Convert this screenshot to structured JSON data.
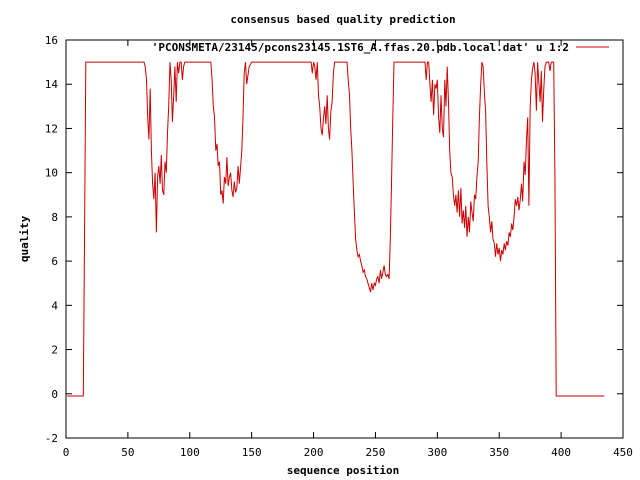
{
  "chart_data": {
    "type": "line",
    "title": "consensus based quality prediction",
    "xlabel": "sequence position",
    "ylabel": "quality",
    "xlim": [
      0,
      450
    ],
    "ylim": [
      -2,
      16
    ],
    "xticks": [
      0,
      50,
      100,
      150,
      200,
      250,
      300,
      350,
      400,
      450
    ],
    "yticks": [
      -2,
      0,
      2,
      4,
      6,
      8,
      10,
      12,
      14,
      16
    ],
    "grid": false,
    "legend_position": "top-right",
    "series": [
      {
        "name": "'PCONSMETA/23145/pcons23145.1ST6_A.ffas.20.pdb.local.dat' u 1:2",
        "color": "#cc0000",
        "x": [
          1,
          14,
          15,
          16,
          17,
          18,
          20,
          25,
          30,
          40,
          50,
          55,
          60,
          63,
          64,
          65,
          66,
          67,
          68,
          69,
          70,
          71,
          72,
          73,
          74,
          75,
          76,
          77,
          78,
          79,
          80,
          81,
          82,
          83,
          84,
          85,
          86,
          87,
          88,
          89,
          90,
          91,
          92,
          93,
          94,
          95,
          96,
          97,
          98,
          99,
          100,
          105,
          110,
          115,
          117,
          118,
          119,
          120,
          121,
          122,
          123,
          124,
          125,
          126,
          127,
          128,
          129,
          130,
          131,
          132,
          133,
          134,
          135,
          136,
          137,
          138,
          139,
          140,
          141,
          142,
          143,
          144,
          145,
          146,
          148,
          150,
          155,
          160,
          170,
          180,
          190,
          198,
          199,
          200,
          201,
          202,
          203,
          204,
          205,
          206,
          207,
          208,
          209,
          210,
          211,
          212,
          213,
          214,
          215,
          216,
          217,
          218,
          219,
          220,
          221,
          222,
          223,
          224,
          225,
          226,
          227,
          228,
          229,
          230,
          231,
          232,
          233,
          234,
          235,
          236,
          237,
          238,
          239,
          240,
          241,
          242,
          243,
          244,
          245,
          246,
          247,
          248,
          249,
          250,
          251,
          252,
          253,
          254,
          255,
          256,
          257,
          258,
          259,
          260,
          261,
          262,
          263,
          264,
          265,
          266,
          267,
          268,
          270,
          275,
          280,
          285,
          290,
          291,
          292,
          293,
          294,
          295,
          296,
          297,
          298,
          299,
          300,
          301,
          302,
          303,
          304,
          305,
          306,
          307,
          308,
          309,
          310,
          311,
          312,
          313,
          314,
          315,
          316,
          317,
          318,
          319,
          320,
          321,
          322,
          323,
          324,
          325,
          326,
          327,
          328,
          329,
          330,
          331,
          332,
          333,
          334,
          335,
          336,
          337,
          338,
          339,
          340,
          341,
          342,
          343,
          344,
          345,
          346,
          347,
          348,
          349,
          350,
          351,
          352,
          353,
          354,
          355,
          356,
          357,
          358,
          359,
          360,
          361,
          362,
          363,
          364,
          365,
          366,
          367,
          368,
          369,
          370,
          371,
          372,
          373,
          374,
          375,
          376,
          377,
          378,
          379,
          380,
          381,
          382,
          383,
          384,
          385,
          386,
          387,
          388,
          389,
          390,
          391,
          392,
          393,
          394,
          395,
          396,
          400,
          410,
          420,
          435
        ],
        "y": [
          -0.1,
          -0.1,
          7.5,
          15,
          15,
          15,
          15,
          15,
          15,
          15,
          15,
          15,
          15,
          15,
          14.8,
          14.2,
          12.5,
          11.5,
          13.8,
          11,
          9.5,
          8.8,
          10,
          7.3,
          9.8,
          10.3,
          9.5,
          10.8,
          9.2,
          9,
          10.5,
          10,
          11.8,
          13,
          15,
          14.2,
          12.3,
          13.5,
          14.8,
          13.2,
          15,
          14.5,
          15,
          15,
          14.2,
          14.8,
          15,
          15,
          15,
          15,
          15,
          15,
          15,
          15,
          15,
          14.2,
          13,
          12.5,
          11,
          11.3,
          10.3,
          10.5,
          9,
          9.2,
          8.6,
          9.8,
          9.5,
          10.7,
          9.4,
          9.8,
          10,
          9.2,
          8.9,
          9.6,
          9.1,
          9.3,
          10.3,
          9.5,
          10.2,
          11,
          12.5,
          14.5,
          15,
          14,
          14.8,
          15,
          15,
          15,
          15,
          15,
          15,
          15,
          14.5,
          15,
          14.8,
          14.2,
          15,
          13.5,
          13,
          12,
          11.7,
          12.5,
          13,
          12.2,
          13.5,
          12,
          11.5,
          12.8,
          13.2,
          14.5,
          15,
          15,
          15,
          15,
          15,
          15,
          15,
          15,
          15,
          15,
          15,
          14.2,
          13.5,
          12,
          11,
          9.5,
          8.2,
          7,
          6.5,
          6.2,
          6.3,
          6,
          5.8,
          5.5,
          5.6,
          5.3,
          5.2,
          5,
          4.8,
          4.6,
          5,
          4.7,
          5,
          4.9,
          5.2,
          5.3,
          5,
          5.6,
          5.2,
          5.5,
          5.8,
          5.4,
          5.3,
          5.4,
          5.2,
          7,
          9.5,
          12.5,
          15,
          15,
          15,
          15,
          15,
          15,
          15,
          15,
          15,
          14.2,
          15,
          15,
          14,
          13.2,
          14.2,
          12.6,
          14,
          13.8,
          14.2,
          12.5,
          11.8,
          13.5,
          12,
          11.6,
          14.2,
          13,
          14.8,
          13.2,
          11,
          10,
          9.8,
          9,
          8.5,
          9,
          8.2,
          9.2,
          8,
          9.3,
          7.7,
          8.3,
          7.5,
          8.5,
          7.1,
          8,
          7.3,
          8.7,
          8.2,
          7.8,
          9,
          8.8,
          9.8,
          10.5,
          12.5,
          14,
          15,
          14.8,
          13.6,
          12.8,
          10.5,
          8.5,
          8,
          7.3,
          7.8,
          7,
          6.8,
          6.2,
          6.8,
          6.3,
          6.6,
          6,
          6.5,
          6.3,
          6.8,
          6.5,
          6.9,
          6.7,
          7.3,
          7.1,
          7.7,
          7.4,
          8,
          8.8,
          8.5,
          8.9,
          8.3,
          8.8,
          9.5,
          8.7,
          10.5,
          9.9,
          11.5,
          12.5,
          8.5,
          13,
          14.2,
          14.7,
          15,
          14.5,
          12.8,
          15,
          14.1,
          13.2,
          14.6,
          12.3,
          13.8,
          14.8,
          15,
          15,
          15,
          14.6,
          15,
          15,
          15,
          10,
          -0.1,
          -0.1,
          -0.1,
          -0.1,
          -0.1
        ]
      }
    ]
  }
}
